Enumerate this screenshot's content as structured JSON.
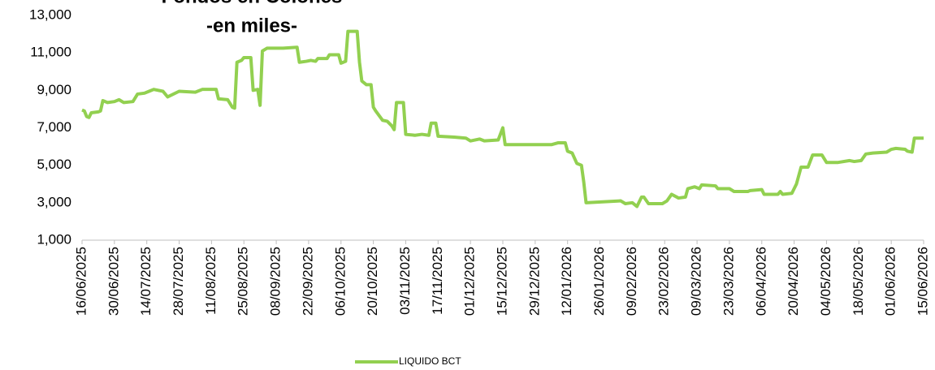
{
  "chart_data": {
    "type": "line",
    "title": "Fondos en Colones",
    "subtitle": "-en miles-",
    "x": [
      "16/06/2025",
      "17/06/2025",
      "18/06/2025",
      "19/06/2025",
      "20/06/2025",
      "23/06/2025",
      "24/06/2025",
      "25/06/2025",
      "27/06/2025",
      "30/06/2025",
      "02/07/2025",
      "04/07/2025",
      "08/07/2025",
      "10/07/2025",
      "13/07/2025",
      "15/07/2025",
      "17/07/2025",
      "21/07/2025",
      "23/07/2025",
      "28/07/2025",
      "04/08/2025",
      "07/08/2025",
      "13/08/2025",
      "14/08/2025",
      "18/08/2025",
      "20/08/2025",
      "21/08/2025",
      "22/08/2025",
      "24/08/2025",
      "25/08/2025",
      "28/08/2025",
      "29/08/2025",
      "31/08/2025",
      "01/09/2025",
      "02/09/2025",
      "04/09/2025",
      "11/09/2025",
      "17/09/2025",
      "18/09/2025",
      "21/09/2025",
      "23/09/2025",
      "25/09/2025",
      "26/09/2025",
      "30/09/2025",
      "01/10/2025",
      "05/10/2025",
      "06/10/2025",
      "08/10/2025",
      "09/10/2025",
      "13/10/2025",
      "14/10/2025",
      "15/10/2025",
      "17/10/2025",
      "19/10/2025",
      "20/10/2025",
      "21/10/2025",
      "24/10/2025",
      "26/10/2025",
      "28/10/2025",
      "29/10/2025",
      "30/10/2025",
      "02/11/2025",
      "03/11/2025",
      "07/11/2025",
      "10/11/2025",
      "13/11/2025",
      "14/11/2025",
      "16/11/2025",
      "17/11/2025",
      "24/11/2025",
      "29/11/2025",
      "01/12/2025",
      "05/12/2025",
      "07/12/2025",
      "13/12/2025",
      "15/12/2025",
      "16/12/2025",
      "22/12/2025",
      "05/01/2026",
      "08/01/2026",
      "11/01/2026",
      "12/01/2026",
      "14/01/2026",
      "16/01/2026",
      "18/01/2026",
      "19/01/2026",
      "20/01/2026",
      "28/01/2026",
      "04/02/2026",
      "06/02/2026",
      "09/02/2026",
      "11/02/2026",
      "13/02/2026",
      "14/02/2026",
      "16/02/2026",
      "22/02/2026",
      "24/02/2026",
      "26/02/2026",
      "01/03/2026",
      "04/03/2026",
      "05/03/2026",
      "08/03/2026",
      "10/03/2026",
      "11/03/2026",
      "17/03/2026",
      "18/03/2026",
      "23/03/2026",
      "25/03/2026",
      "31/03/2026",
      "01/04/2026",
      "06/04/2026",
      "07/04/2026",
      "13/04/2026",
      "14/04/2026",
      "15/04/2026",
      "19/04/2026",
      "21/04/2026",
      "23/04/2026",
      "26/04/2026",
      "28/04/2026",
      "02/05/2026",
      "04/05/2026",
      "09/05/2026",
      "14/05/2026",
      "16/05/2026",
      "19/05/2026",
      "21/05/2026",
      "24/05/2026",
      "30/05/2026",
      "01/06/2026",
      "03/06/2026",
      "07/06/2026",
      "08/06/2026",
      "10/06/2026",
      "11/06/2026",
      "15/06/2026"
    ],
    "series": [
      {
        "name": "LIQUIDO BCT",
        "color": "#92d050",
        "values": [
          7950,
          7900,
          7600,
          7550,
          7800,
          7850,
          7900,
          8450,
          8350,
          8400,
          8500,
          8350,
          8400,
          8800,
          8850,
          8950,
          9050,
          8950,
          8650,
          8950,
          8900,
          9050,
          9050,
          8550,
          8500,
          8100,
          8050,
          10500,
          10600,
          10750,
          10750,
          9000,
          9050,
          8200,
          11100,
          11250,
          11250,
          11300,
          10500,
          10550,
          10600,
          10550,
          10700,
          10700,
          10900,
          10900,
          10450,
          10550,
          12150,
          12150,
          10500,
          9500,
          9300,
          9300,
          8100,
          7900,
          7400,
          7350,
          7100,
          6900,
          8350,
          8350,
          6650,
          6600,
          6650,
          6600,
          7250,
          7250,
          6550,
          6500,
          6450,
          6300,
          6400,
          6300,
          6350,
          7000,
          6100,
          6100,
          6100,
          6200,
          6200,
          5750,
          5650,
          5100,
          5000,
          4100,
          3000,
          3050,
          3100,
          2950,
          3000,
          2800,
          3300,
          3300,
          2950,
          2950,
          3100,
          3450,
          3250,
          3300,
          3750,
          3850,
          3750,
          3950,
          3900,
          3750,
          3750,
          3600,
          3600,
          3650,
          3700,
          3450,
          3450,
          3600,
          3450,
          3500,
          4000,
          4900,
          4900,
          5550,
          5550,
          5150,
          5150,
          5250,
          5200,
          5250,
          5600,
          5650,
          5700,
          5850,
          5900,
          5850,
          5750,
          5700,
          6450,
          6450
        ]
      }
    ],
    "xlim": [
      "16/06/2025",
      "15/06/2026"
    ],
    "xticks": [
      "16/06/2025",
      "30/06/2025",
      "14/07/2025",
      "28/07/2025",
      "11/08/2025",
      "25/08/2025",
      "08/09/2025",
      "22/09/2025",
      "06/10/2025",
      "20/10/2025",
      "03/11/2025",
      "17/11/2025",
      "01/12/2025",
      "15/12/2025",
      "29/12/2025",
      "12/01/2026",
      "26/01/2026",
      "09/02/2026",
      "23/02/2026",
      "09/03/2026",
      "23/03/2026",
      "06/04/2026",
      "20/04/2026",
      "04/05/2026",
      "18/05/2026",
      "01/06/2026",
      "15/06/2026"
    ],
    "ylim": [
      1000,
      13000
    ],
    "yticks": [
      {
        "value": 1000,
        "label": "1,000"
      },
      {
        "value": 3000,
        "label": "3,000"
      },
      {
        "value": 5000,
        "label": "5,000"
      },
      {
        "value": 7000,
        "label": "7,000"
      },
      {
        "value": 9000,
        "label": "9,000"
      },
      {
        "value": 11000,
        "label": "11,000"
      },
      {
        "value": 13000,
        "label": "13,000"
      }
    ],
    "grid": false,
    "legend": "bottom"
  }
}
